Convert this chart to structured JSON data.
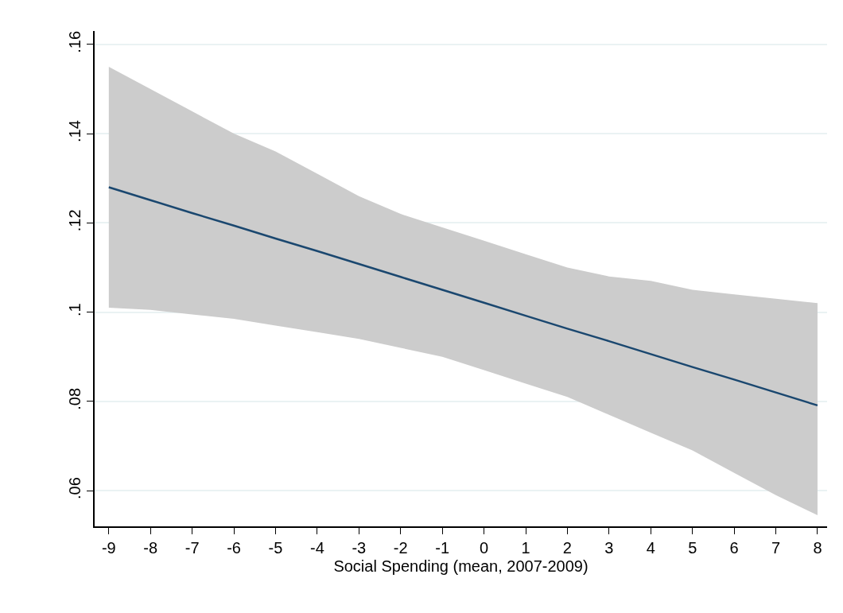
{
  "chart_data": {
    "type": "line",
    "xlabel": "Social Spending (mean, 2007-2009)",
    "x": [
      -9,
      -8,
      -7,
      -6,
      -5,
      -4,
      -3,
      -2,
      -1,
      0,
      1,
      2,
      3,
      4,
      5,
      6,
      7,
      8
    ],
    "series": [
      {
        "color": "#1a476f",
        "values": [
          0.128,
          0.1251,
          0.1222,
          0.1194,
          0.1165,
          0.1137,
          0.1108,
          0.1079,
          0.105,
          0.1021,
          0.0992,
          0.0963,
          0.0935,
          0.0906,
          0.0877,
          0.0849,
          0.082,
          0.0791
        ],
        "upper": [
          0.155,
          0.15,
          0.145,
          0.14,
          0.136,
          0.131,
          0.126,
          0.122,
          0.119,
          0.116,
          0.113,
          0.11,
          0.108,
          0.107,
          0.105,
          0.104,
          0.103,
          0.102
        ],
        "lower": [
          0.101,
          0.1005,
          0.0995,
          0.0985,
          0.097,
          0.0955,
          0.094,
          0.092,
          0.09,
          0.087,
          0.084,
          0.081,
          0.077,
          0.073,
          0.069,
          0.064,
          0.059,
          0.0545
        ]
      }
    ],
    "xlim": [
      -9.34,
      8.23
    ],
    "xticks": [
      -9,
      -8,
      -7,
      -6,
      -5,
      -4,
      -3,
      -2,
      -1,
      0,
      1,
      2,
      3,
      4,
      5,
      6,
      7,
      8
    ],
    "ylim": [
      0.052,
      0.163
    ],
    "yticks": [
      {
        "value": 0.06,
        "label": ".06"
      },
      {
        "value": 0.08,
        "label": ".08"
      },
      {
        "value": 0.1,
        "label": ".1"
      },
      {
        "value": 0.12,
        "label": ".12"
      },
      {
        "value": 0.14,
        "label": ".14"
      },
      {
        "value": 0.16,
        "label": ".16"
      }
    ],
    "grid": "y",
    "marker": "none",
    "line_style": "solid"
  }
}
